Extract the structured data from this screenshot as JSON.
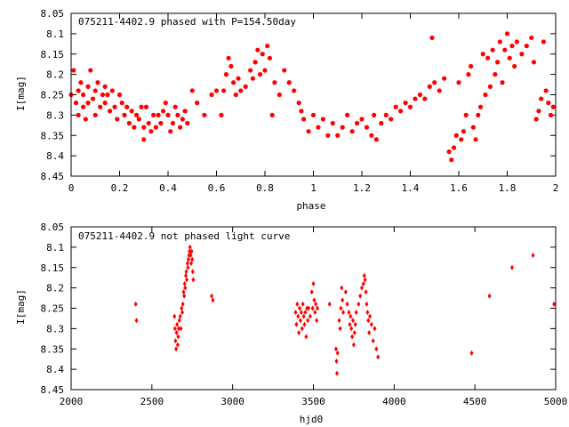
{
  "chart_data": [
    {
      "type": "scatter",
      "title": "075211-4402.9 phased with P=154.50day",
      "xlabel": "phase",
      "ylabel": "I[mag]",
      "xlim": [
        0,
        2
      ],
      "ylim": [
        8.45,
        8.05
      ],
      "y_inverted": true,
      "grid": false,
      "marker_color": "#ff0000",
      "x_ticks": [
        "0",
        "0.2",
        "0.4",
        "0.6",
        "0.8",
        "1",
        "1.2",
        "1.4",
        "1.6",
        "1.8",
        "2"
      ],
      "y_ticks": [
        "8.05",
        "8.1",
        "8.15",
        "8.2",
        "8.25",
        "8.3",
        "8.35",
        "8.4",
        "8.45"
      ],
      "series": [
        {
          "points": [
            [
              0.0,
              8.25
            ],
            [
              0.01,
              8.19
            ],
            [
              0.02,
              8.27
            ],
            [
              0.03,
              8.24
            ],
            [
              0.03,
              8.3
            ],
            [
              0.04,
              8.22
            ],
            [
              0.05,
              8.28
            ],
            [
              0.05,
              8.25
            ],
            [
              0.06,
              8.31
            ],
            [
              0.07,
              8.23
            ],
            [
              0.07,
              8.27
            ],
            [
              0.08,
              8.19
            ],
            [
              0.09,
              8.26
            ],
            [
              0.1,
              8.3
            ],
            [
              0.1,
              8.24
            ],
            [
              0.11,
              8.22
            ],
            [
              0.12,
              8.28
            ],
            [
              0.13,
              8.25
            ],
            [
              0.14,
              8.23
            ],
            [
              0.14,
              8.27
            ],
            [
              0.15,
              8.25
            ],
            [
              0.16,
              8.29
            ],
            [
              0.17,
              8.24
            ],
            [
              0.18,
              8.28
            ],
            [
              0.19,
              8.31
            ],
            [
              0.2,
              8.25
            ],
            [
              0.21,
              8.27
            ],
            [
              0.22,
              8.3
            ],
            [
              0.23,
              8.28
            ],
            [
              0.24,
              8.32
            ],
            [
              0.25,
              8.29
            ],
            [
              0.26,
              8.33
            ],
            [
              0.27,
              8.3
            ],
            [
              0.28,
              8.31
            ],
            [
              0.29,
              8.28
            ],
            [
              0.3,
              8.33
            ],
            [
              0.3,
              8.36
            ],
            [
              0.31,
              8.28
            ],
            [
              0.32,
              8.32
            ],
            [
              0.33,
              8.34
            ],
            [
              0.34,
              8.3
            ],
            [
              0.35,
              8.33
            ],
            [
              0.36,
              8.3
            ],
            [
              0.37,
              8.32
            ],
            [
              0.38,
              8.29
            ],
            [
              0.39,
              8.27
            ],
            [
              0.4,
              8.3
            ],
            [
              0.41,
              8.34
            ],
            [
              0.42,
              8.32
            ],
            [
              0.43,
              8.28
            ],
            [
              0.44,
              8.3
            ],
            [
              0.45,
              8.33
            ],
            [
              0.46,
              8.31
            ],
            [
              0.47,
              8.29
            ],
            [
              0.48,
              8.32
            ],
            [
              0.5,
              8.24
            ],
            [
              0.52,
              8.27
            ],
            [
              0.55,
              8.3
            ],
            [
              0.58,
              8.25
            ],
            [
              0.6,
              8.24
            ],
            [
              0.62,
              8.3
            ],
            [
              0.63,
              8.24
            ],
            [
              0.64,
              8.2
            ],
            [
              0.65,
              8.16
            ],
            [
              0.66,
              8.18
            ],
            [
              0.67,
              8.22
            ],
            [
              0.68,
              8.25
            ],
            [
              0.69,
              8.21
            ],
            [
              0.7,
              8.24
            ],
            [
              0.72,
              8.23
            ],
            [
              0.74,
              8.19
            ],
            [
              0.75,
              8.21
            ],
            [
              0.76,
              8.17
            ],
            [
              0.77,
              8.14
            ],
            [
              0.78,
              8.2
            ],
            [
              0.79,
              8.15
            ],
            [
              0.8,
              8.19
            ],
            [
              0.81,
              8.13
            ],
            [
              0.82,
              8.16
            ],
            [
              0.83,
              8.3
            ],
            [
              0.84,
              8.22
            ],
            [
              0.86,
              8.25
            ],
            [
              0.88,
              8.19
            ],
            [
              0.9,
              8.22
            ],
            [
              0.92,
              8.24
            ],
            [
              0.94,
              8.27
            ],
            [
              0.95,
              8.29
            ],
            [
              0.96,
              8.31
            ],
            [
              0.98,
              8.34
            ],
            [
              1.0,
              8.3
            ],
            [
              1.02,
              8.33
            ],
            [
              1.04,
              8.31
            ],
            [
              1.06,
              8.35
            ],
            [
              1.08,
              8.32
            ],
            [
              1.1,
              8.35
            ],
            [
              1.12,
              8.33
            ],
            [
              1.14,
              8.3
            ],
            [
              1.16,
              8.34
            ],
            [
              1.18,
              8.32
            ],
            [
              1.2,
              8.31
            ],
            [
              1.22,
              8.33
            ],
            [
              1.24,
              8.35
            ],
            [
              1.25,
              8.3
            ],
            [
              1.26,
              8.36
            ],
            [
              1.28,
              8.32
            ],
            [
              1.3,
              8.3
            ],
            [
              1.32,
              8.31
            ],
            [
              1.34,
              8.28
            ],
            [
              1.36,
              8.29
            ],
            [
              1.38,
              8.27
            ],
            [
              1.4,
              8.28
            ],
            [
              1.42,
              8.26
            ],
            [
              1.44,
              8.25
            ],
            [
              1.46,
              8.26
            ],
            [
              1.48,
              8.23
            ],
            [
              1.49,
              8.11
            ],
            [
              1.5,
              8.22
            ],
            [
              1.52,
              8.24
            ],
            [
              1.54,
              8.21
            ],
            [
              1.56,
              8.39
            ],
            [
              1.57,
              8.41
            ],
            [
              1.58,
              8.38
            ],
            [
              1.59,
              8.35
            ],
            [
              1.6,
              8.22
            ],
            [
              1.61,
              8.36
            ],
            [
              1.62,
              8.34
            ],
            [
              1.63,
              8.3
            ],
            [
              1.64,
              8.2
            ],
            [
              1.65,
              8.18
            ],
            [
              1.66,
              8.33
            ],
            [
              1.67,
              8.36
            ],
            [
              1.68,
              8.3
            ],
            [
              1.69,
              8.28
            ],
            [
              1.7,
              8.15
            ],
            [
              1.71,
              8.25
            ],
            [
              1.72,
              8.16
            ],
            [
              1.73,
              8.23
            ],
            [
              1.74,
              8.14
            ],
            [
              1.75,
              8.2
            ],
            [
              1.76,
              8.17
            ],
            [
              1.77,
              8.12
            ],
            [
              1.78,
              8.22
            ],
            [
              1.79,
              8.14
            ],
            [
              1.8,
              8.1
            ],
            [
              1.81,
              8.16
            ],
            [
              1.82,
              8.13
            ],
            [
              1.83,
              8.18
            ],
            [
              1.84,
              8.12
            ],
            [
              1.86,
              8.15
            ],
            [
              1.88,
              8.13
            ],
            [
              1.9,
              8.11
            ],
            [
              1.91,
              8.17
            ],
            [
              1.92,
              8.31
            ],
            [
              1.93,
              8.29
            ],
            [
              1.94,
              8.26
            ],
            [
              1.95,
              8.12
            ],
            [
              1.96,
              8.24
            ],
            [
              1.97,
              8.27
            ],
            [
              1.98,
              8.3
            ],
            [
              1.99,
              8.28
            ]
          ]
        }
      ]
    },
    {
      "type": "scatter",
      "title": "075211-4402.9 not phased light curve",
      "xlabel": "hjd0",
      "ylabel": "I[mag]",
      "xlim": [
        2000,
        5000
      ],
      "ylim": [
        8.45,
        8.05
      ],
      "y_inverted": true,
      "grid": false,
      "marker_color": "#ff0000",
      "x_ticks": [
        "2000",
        "2500",
        "3000",
        "3500",
        "4000",
        "4500",
        "5000"
      ],
      "y_ticks": [
        "8.05",
        "8.1",
        "8.15",
        "8.2",
        "8.25",
        "8.3",
        "8.35",
        "8.4",
        "8.45"
      ],
      "series": [
        {
          "points": [
            [
              2400,
              8.24
            ],
            [
              2405,
              8.28
            ],
            [
              2640,
              8.27
            ],
            [
              2643,
              8.3
            ],
            [
              2646,
              8.33
            ],
            [
              2650,
              8.35
            ],
            [
              2653,
              8.31
            ],
            [
              2656,
              8.29
            ],
            [
              2660,
              8.34
            ],
            [
              2663,
              8.32
            ],
            [
              2666,
              8.3
            ],
            [
              2670,
              8.28
            ],
            [
              2675,
              8.27
            ],
            [
              2680,
              8.3
            ],
            [
              2684,
              8.25
            ],
            [
              2688,
              8.26
            ],
            [
              2692,
              8.24
            ],
            [
              2696,
              8.21
            ],
            [
              2700,
              8.22
            ],
            [
              2703,
              8.19
            ],
            [
              2706,
              8.2
            ],
            [
              2710,
              8.17
            ],
            [
              2713,
              8.16
            ],
            [
              2716,
              8.18
            ],
            [
              2720,
              8.14
            ],
            [
              2723,
              8.15
            ],
            [
              2726,
              8.13
            ],
            [
              2730,
              8.12
            ],
            [
              2733,
              8.11
            ],
            [
              2736,
              8.1
            ],
            [
              2740,
              8.12
            ],
            [
              2743,
              8.14
            ],
            [
              2746,
              8.11
            ],
            [
              2750,
              8.13
            ],
            [
              2753,
              8.16
            ],
            [
              2756,
              8.18
            ],
            [
              2870,
              8.22
            ],
            [
              2878,
              8.23
            ],
            [
              3390,
              8.26
            ],
            [
              3395,
              8.29
            ],
            [
              3400,
              8.24
            ],
            [
              3405,
              8.27
            ],
            [
              3410,
              8.31
            ],
            [
              3415,
              8.25
            ],
            [
              3420,
              8.28
            ],
            [
              3425,
              8.26
            ],
            [
              3430,
              8.3
            ],
            [
              3435,
              8.24
            ],
            [
              3440,
              8.27
            ],
            [
              3445,
              8.29
            ],
            [
              3450,
              8.26
            ],
            [
              3455,
              8.32
            ],
            [
              3460,
              8.25
            ],
            [
              3465,
              8.28
            ],
            [
              3470,
              8.25
            ],
            [
              3480,
              8.27
            ],
            [
              3490,
              8.21
            ],
            [
              3495,
              8.25
            ],
            [
              3500,
              8.19
            ],
            [
              3505,
              8.23
            ],
            [
              3510,
              8.26
            ],
            [
              3515,
              8.24
            ],
            [
              3520,
              8.28
            ],
            [
              3525,
              8.25
            ],
            [
              3600,
              8.24
            ],
            [
              3640,
              8.35
            ],
            [
              3643,
              8.38
            ],
            [
              3646,
              8.41
            ],
            [
              3650,
              8.36
            ],
            [
              3660,
              8.28
            ],
            [
              3665,
              8.3
            ],
            [
              3670,
              8.25
            ],
            [
              3675,
              8.2
            ],
            [
              3680,
              8.23
            ],
            [
              3685,
              8.26
            ],
            [
              3700,
              8.21
            ],
            [
              3710,
              8.24
            ],
            [
              3720,
              8.26
            ],
            [
              3725,
              8.29
            ],
            [
              3730,
              8.27
            ],
            [
              3735,
              8.3
            ],
            [
              3740,
              8.32
            ],
            [
              3745,
              8.28
            ],
            [
              3750,
              8.34
            ],
            [
              3755,
              8.31
            ],
            [
              3760,
              8.29
            ],
            [
              3765,
              8.26
            ],
            [
              3780,
              8.24
            ],
            [
              3790,
              8.22
            ],
            [
              3800,
              8.2
            ],
            [
              3810,
              8.19
            ],
            [
              3815,
              8.17
            ],
            [
              3820,
              8.18
            ],
            [
              3825,
              8.21
            ],
            [
              3830,
              8.24
            ],
            [
              3835,
              8.26
            ],
            [
              3840,
              8.28
            ],
            [
              3845,
              8.31
            ],
            [
              3850,
              8.27
            ],
            [
              3860,
              8.29
            ],
            [
              3870,
              8.33
            ],
            [
              3880,
              8.3
            ],
            [
              3890,
              8.35
            ],
            [
              3900,
              8.37
            ],
            [
              4480,
              8.36
            ],
            [
              4590,
              8.22
            ],
            [
              4730,
              8.15
            ],
            [
              4860,
              8.12
            ],
            [
              4990,
              8.24
            ]
          ]
        }
      ]
    }
  ]
}
